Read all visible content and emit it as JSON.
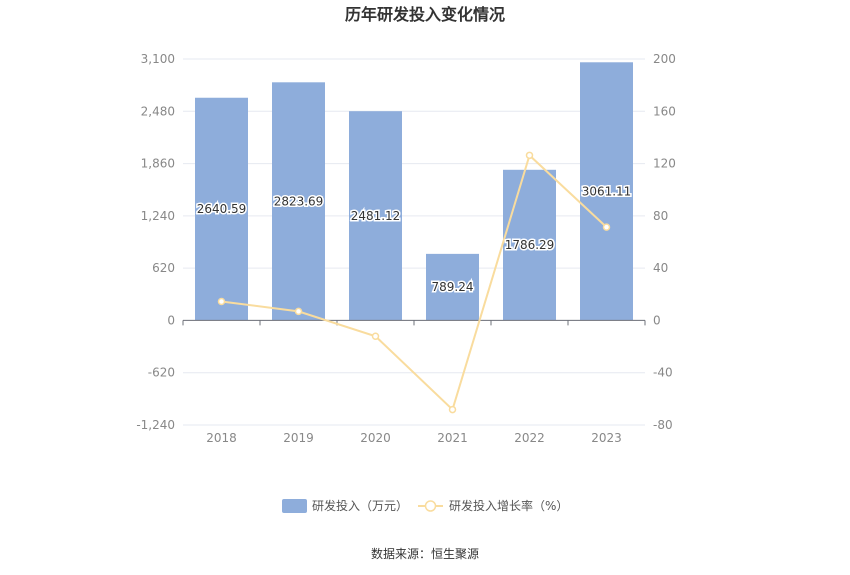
{
  "chart_data": {
    "type": "bar",
    "title": "历年研发投入变化情况",
    "categories": [
      "2018",
      "2019",
      "2020",
      "2021",
      "2022",
      "2023"
    ],
    "series": [
      {
        "name": "研发投入（万元）",
        "type": "bar",
        "axis": "left",
        "values": [
          2640.59,
          2823.69,
          2481.12,
          789.24,
          1786.29,
          3061.11
        ],
        "labels": [
          "2640.59",
          "2823.69",
          "2481.12",
          "789.24",
          "1786.29",
          "3061.11"
        ]
      },
      {
        "name": "研发投入增长率（%）",
        "type": "line",
        "axis": "right",
        "values": [
          14.5,
          6.9,
          -12.1,
          -68.2,
          126.3,
          71.4
        ]
      }
    ],
    "y_left": {
      "ylim": [
        -1240,
        3100
      ],
      "ticks": [
        "3,100",
        "2,480",
        "1,860",
        "1,240",
        "620",
        "0",
        "-620",
        "-1,240"
      ]
    },
    "y_right": {
      "ylim": [
        -80,
        200
      ],
      "ticks": [
        "200",
        "160",
        "120",
        "80",
        "40",
        "0",
        "-40",
        "-80"
      ]
    },
    "grid": true,
    "legend_position": "bottom",
    "colors": {
      "bar": "#8eaddb",
      "line": "#f9dc9e",
      "grid": "#e6e9f0",
      "axis": "#6e7079"
    }
  },
  "footer": {
    "source": "数据来源：恒生聚源"
  }
}
